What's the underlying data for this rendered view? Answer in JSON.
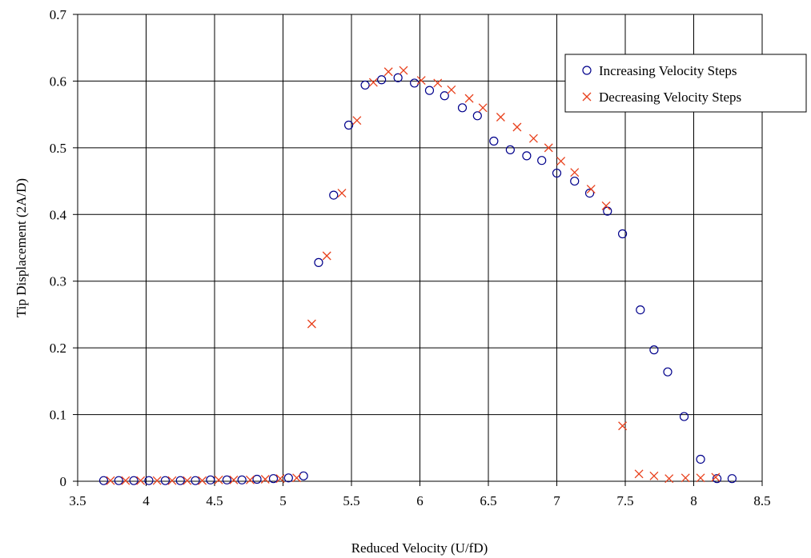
{
  "chart_data": {
    "type": "scatter",
    "xlabel": "Reduced Velocity (U/fD)",
    "ylabel": "Tip Displacement (2A/D)",
    "xlim": [
      3.5,
      8.5
    ],
    "ylim": [
      0,
      0.7
    ],
    "x_ticks": [
      "3.5",
      "4",
      "4.5",
      "5",
      "5.5",
      "6",
      "6.5",
      "7",
      "7.5",
      "8",
      "8.5"
    ],
    "y_ticks": [
      "0",
      "0.1",
      "0.2",
      "0.3",
      "0.4",
      "0.5",
      "0.6",
      "0.7"
    ],
    "grid": true,
    "legend_position": "top-right",
    "series": [
      {
        "name": "Increasing Velocity Steps",
        "marker": "circle",
        "color": "#00008b",
        "points": [
          [
            3.69,
            0.001
          ],
          [
            3.8,
            0.001
          ],
          [
            3.91,
            0.001
          ],
          [
            4.02,
            0.001
          ],
          [
            4.14,
            0.001
          ],
          [
            4.25,
            0.001
          ],
          [
            4.36,
            0.001
          ],
          [
            4.47,
            0.002
          ],
          [
            4.59,
            0.002
          ],
          [
            4.7,
            0.002
          ],
          [
            4.81,
            0.003
          ],
          [
            4.93,
            0.004
          ],
          [
            5.04,
            0.005
          ],
          [
            5.15,
            0.008
          ],
          [
            5.26,
            0.328
          ],
          [
            5.37,
            0.429
          ],
          [
            5.48,
            0.534
          ],
          [
            5.6,
            0.594
          ],
          [
            5.72,
            0.602
          ],
          [
            5.84,
            0.605
          ],
          [
            5.96,
            0.597
          ],
          [
            6.07,
            0.586
          ],
          [
            6.18,
            0.578
          ],
          [
            6.31,
            0.56
          ],
          [
            6.42,
            0.548
          ],
          [
            6.54,
            0.51
          ],
          [
            6.66,
            0.497
          ],
          [
            6.78,
            0.488
          ],
          [
            6.89,
            0.481
          ],
          [
            7.0,
            0.462
          ],
          [
            7.13,
            0.45
          ],
          [
            7.24,
            0.432
          ],
          [
            7.37,
            0.405
          ],
          [
            7.48,
            0.371
          ],
          [
            7.61,
            0.257
          ],
          [
            7.71,
            0.197
          ],
          [
            7.81,
            0.164
          ],
          [
            7.93,
            0.097
          ],
          [
            8.05,
            0.033
          ],
          [
            8.17,
            0.004
          ],
          [
            8.28,
            0.004
          ]
        ]
      },
      {
        "name": "Decreasing Velocity Steps",
        "marker": "x",
        "color": "#e8401c",
        "points": [
          [
            3.74,
            0.001
          ],
          [
            3.85,
            0.001
          ],
          [
            3.96,
            0.001
          ],
          [
            4.08,
            0.001
          ],
          [
            4.19,
            0.001
          ],
          [
            4.3,
            0.001
          ],
          [
            4.41,
            0.001
          ],
          [
            4.53,
            0.002
          ],
          [
            4.64,
            0.002
          ],
          [
            4.76,
            0.002
          ],
          [
            4.87,
            0.003
          ],
          [
            4.98,
            0.004
          ],
          [
            5.1,
            0.005
          ],
          [
            5.21,
            0.236
          ],
          [
            5.32,
            0.338
          ],
          [
            5.43,
            0.432
          ],
          [
            5.54,
            0.541
          ],
          [
            5.66,
            0.598
          ],
          [
            5.77,
            0.614
          ],
          [
            5.88,
            0.616
          ],
          [
            6.01,
            0.601
          ],
          [
            6.13,
            0.597
          ],
          [
            6.23,
            0.587
          ],
          [
            6.36,
            0.574
          ],
          [
            6.46,
            0.56
          ],
          [
            6.59,
            0.546
          ],
          [
            6.71,
            0.531
          ],
          [
            6.83,
            0.514
          ],
          [
            6.94,
            0.5
          ],
          [
            7.03,
            0.48
          ],
          [
            7.13,
            0.463
          ],
          [
            7.25,
            0.438
          ],
          [
            7.36,
            0.413
          ],
          [
            7.48,
            0.083
          ],
          [
            7.6,
            0.011
          ],
          [
            7.71,
            0.008
          ],
          [
            7.82,
            0.004
          ],
          [
            7.94,
            0.005
          ],
          [
            8.05,
            0.005
          ],
          [
            8.16,
            0.006
          ]
        ]
      }
    ]
  }
}
